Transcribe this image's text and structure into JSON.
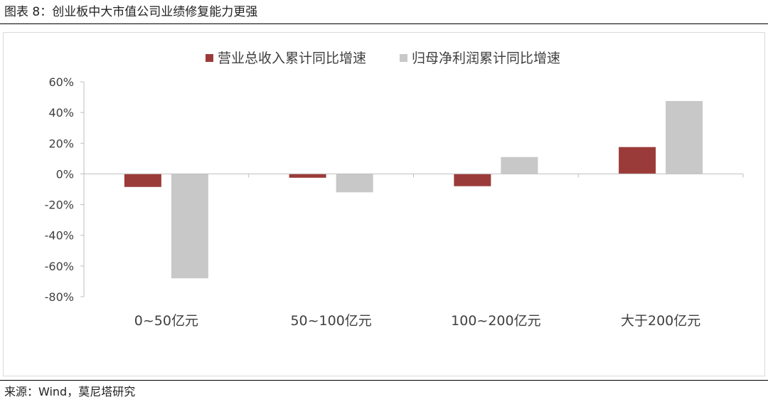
{
  "figure_title": "图表 8：创业板中大市值公司业绩修复能力更强",
  "source": "来源：Wind，莫尼塔研究",
  "colors": {
    "revenue": "#9b3b39",
    "profit": "#c8c8c8",
    "axis": "#bfbfbf",
    "text": "#404040"
  },
  "chart_data": {
    "type": "bar",
    "categories": [
      "0~50亿元",
      "50~100亿元",
      "100~200亿元",
      "大于200亿元"
    ],
    "series": [
      {
        "name": "营业总收入累计同比增速",
        "values": [
          -8.5,
          -2.5,
          -8.0,
          17.5
        ]
      },
      {
        "name": "归母净利润累计同比增速",
        "values": [
          -68.0,
          -12.0,
          11.0,
          47.5
        ]
      }
    ],
    "ylim": [
      -80,
      60
    ],
    "yticks": [
      60,
      40,
      20,
      0,
      -20,
      -40,
      -60,
      -80
    ],
    "ytick_labels": [
      "60%",
      "40%",
      "20%",
      "0%",
      "-20%",
      "-40%",
      "-60%",
      "-80%"
    ],
    "legend_position": "top",
    "grid": false,
    "xlabel": "",
    "ylabel": ""
  }
}
